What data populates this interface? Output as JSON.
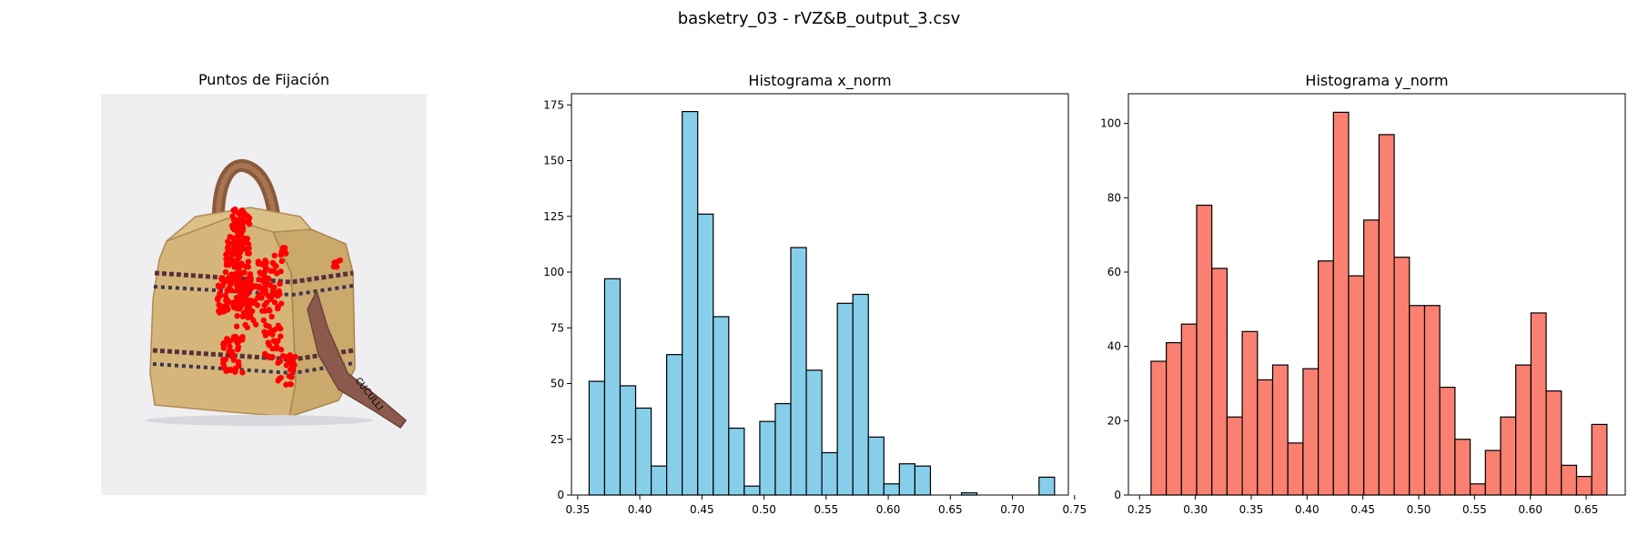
{
  "figure_title": "basketry_03 - rVZ&B_output_3.csv",
  "image_panel": {
    "title": "Puntos de Fijación",
    "strap_text": "CUCULLI"
  },
  "colors": {
    "x_hist_fill": "#87ceeb",
    "y_hist_fill": "#fa8072",
    "bar_edge": "#000000",
    "fixation": "#ff0000",
    "photo_bg": "#efeff1",
    "wicker": "#d6b57a",
    "handle": "#8b5a3c"
  },
  "chart_data": [
    {
      "type": "bar",
      "title": "Histograma x_norm",
      "xlabel": "",
      "ylabel": "",
      "xlim": [
        0.345,
        0.745
      ],
      "ylim": [
        0,
        180
      ],
      "xticks": [
        "0.35",
        "0.40",
        "0.45",
        "0.50",
        "0.55",
        "0.60",
        "0.65",
        "0.70",
        "0.75"
      ],
      "yticks": [
        "0",
        "25",
        "50",
        "75",
        "100",
        "125",
        "150",
        "175"
      ],
      "bin_start": 0.3592,
      "bin_width": 0.01249,
      "values": [
        51,
        97,
        49,
        39,
        13,
        63,
        172,
        126,
        80,
        30,
        4,
        33,
        41,
        111,
        56,
        19,
        86,
        90,
        26,
        5,
        14,
        13,
        0,
        0,
        1,
        0,
        0,
        0,
        0,
        8
      ]
    },
    {
      "type": "bar",
      "title": "Histograma y_norm",
      "xlabel": "",
      "ylabel": "",
      "xlim": [
        0.24,
        0.685
      ],
      "ylim": [
        0,
        108
      ],
      "xticks": [
        "0.25",
        "0.30",
        "0.35",
        "0.40",
        "0.45",
        "0.50",
        "0.55",
        "0.60",
        "0.65"
      ],
      "yticks": [
        "0",
        "20",
        "40",
        "60",
        "80",
        "100"
      ],
      "bin_start": 0.2603,
      "bin_width": 0.01361,
      "values": [
        36,
        41,
        46,
        78,
        61,
        21,
        44,
        31,
        35,
        14,
        34,
        63,
        103,
        59,
        74,
        97,
        64,
        51,
        51,
        29,
        15,
        3,
        12,
        21,
        35,
        49,
        28,
        8,
        5,
        19
      ]
    }
  ]
}
